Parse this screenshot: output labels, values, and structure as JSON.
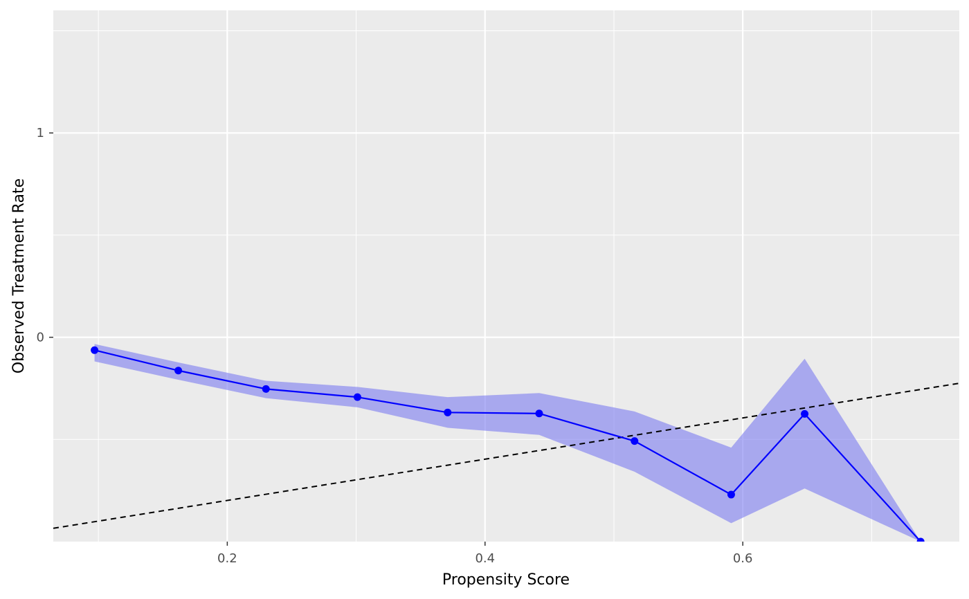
{
  "chart_data": {
    "type": "line",
    "title": "",
    "xlabel": "Propensity Score",
    "ylabel": "Observed Treatment Rate",
    "xlim": [
      0.065,
      0.768
    ],
    "ylim": [
      -1.0,
      1.6
    ],
    "grid": true,
    "x_ticks": [
      {
        "value": 0.2,
        "label": "0.2"
      },
      {
        "value": 0.4,
        "label": "0.4"
      },
      {
        "value": 0.6,
        "label": "0.6"
      }
    ],
    "x_minor_ticks": [
      0.1,
      0.3,
      0.5,
      0.7
    ],
    "y_ticks": [
      {
        "value": 0,
        "label": "0"
      },
      {
        "value": 1,
        "label": "1"
      }
    ],
    "y_minor_ticks": [
      -0.5,
      0.5,
      1.5
    ],
    "series": [
      {
        "x": [
          0.097,
          0.162,
          0.23,
          0.301,
          0.371,
          0.442,
          0.516,
          0.591,
          0.648,
          0.738
        ],
        "y": [
          -0.063,
          -0.163,
          -0.253,
          -0.293,
          -0.368,
          -0.373,
          -0.508,
          -0.77,
          -0.375,
          -1.0
        ],
        "lower": [
          -0.118,
          -0.208,
          -0.298,
          -0.343,
          -0.443,
          -0.478,
          -0.658,
          -0.91,
          -0.74,
          -1.0
        ],
        "upper": [
          -0.033,
          -0.123,
          -0.213,
          -0.243,
          -0.293,
          -0.273,
          -0.363,
          -0.54,
          -0.105,
          -1.0
        ],
        "color": "#0000ff",
        "ribbon_color": "#8080f0"
      }
    ],
    "reference_line": {
      "style": "dashed",
      "color": "#000000",
      "x": [
        0.065,
        0.768
      ],
      "y": [
        -0.935,
        -0.225
      ]
    },
    "panel_background": "#ebebeb",
    "grid_color": "#ffffff"
  }
}
